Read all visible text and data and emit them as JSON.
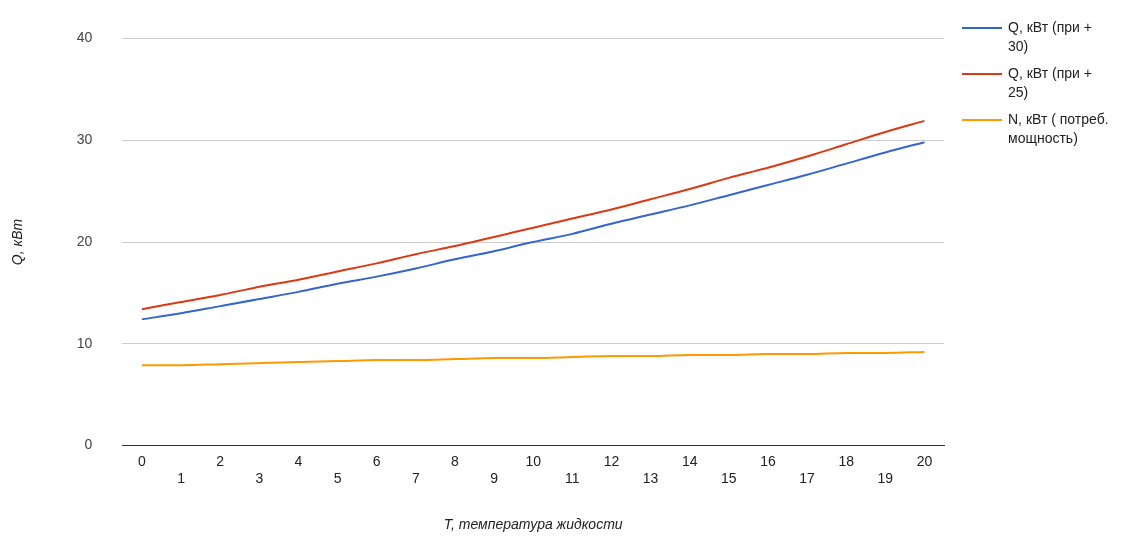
{
  "chart_data": {
    "type": "line",
    "xlabel": "T, температура жидкости",
    "ylabel": "Q, кВт",
    "categories": [
      "0",
      "1",
      "2",
      "3",
      "4",
      "5",
      "6",
      "7",
      "8",
      "9",
      "10",
      "11",
      "12",
      "13",
      "14",
      "15",
      "16",
      "17",
      "18",
      "19",
      "20"
    ],
    "series": [
      {
        "name": "Q, кВт (при + 30)",
        "color": "#3366cc",
        "values": [
          12.4,
          13.0,
          13.7,
          14.4,
          15.1,
          15.9,
          16.6,
          17.4,
          18.3,
          19.1,
          20.0,
          20.8,
          21.8,
          22.7,
          23.6,
          24.6,
          25.6,
          26.6,
          27.7,
          28.8,
          29.8
        ]
      },
      {
        "name": "Q, кВт (при + 25)",
        "color": "#dc3912",
        "values": [
          13.4,
          14.1,
          14.8,
          15.6,
          16.3,
          17.1,
          17.9,
          18.8,
          19.6,
          20.5,
          21.4,
          22.3,
          23.2,
          24.2,
          25.2,
          26.3,
          27.3,
          28.4,
          29.6,
          30.8,
          31.9
        ]
      },
      {
        "name": "N, кВт ( потреб. мощность)",
        "color": "#ff9900",
        "values": [
          7.9,
          7.9,
          8.0,
          8.1,
          8.2,
          8.3,
          8.4,
          8.4,
          8.5,
          8.6,
          8.6,
          8.7,
          8.8,
          8.8,
          8.9,
          8.9,
          9.0,
          9.0,
          9.1,
          9.1,
          9.2
        ]
      }
    ],
    "ylim": [
      0,
      40
    ],
    "yticks": [
      0,
      10,
      20,
      30,
      40
    ],
    "grid": "y",
    "legend": "right",
    "marker": "none",
    "line_style": "solid"
  }
}
